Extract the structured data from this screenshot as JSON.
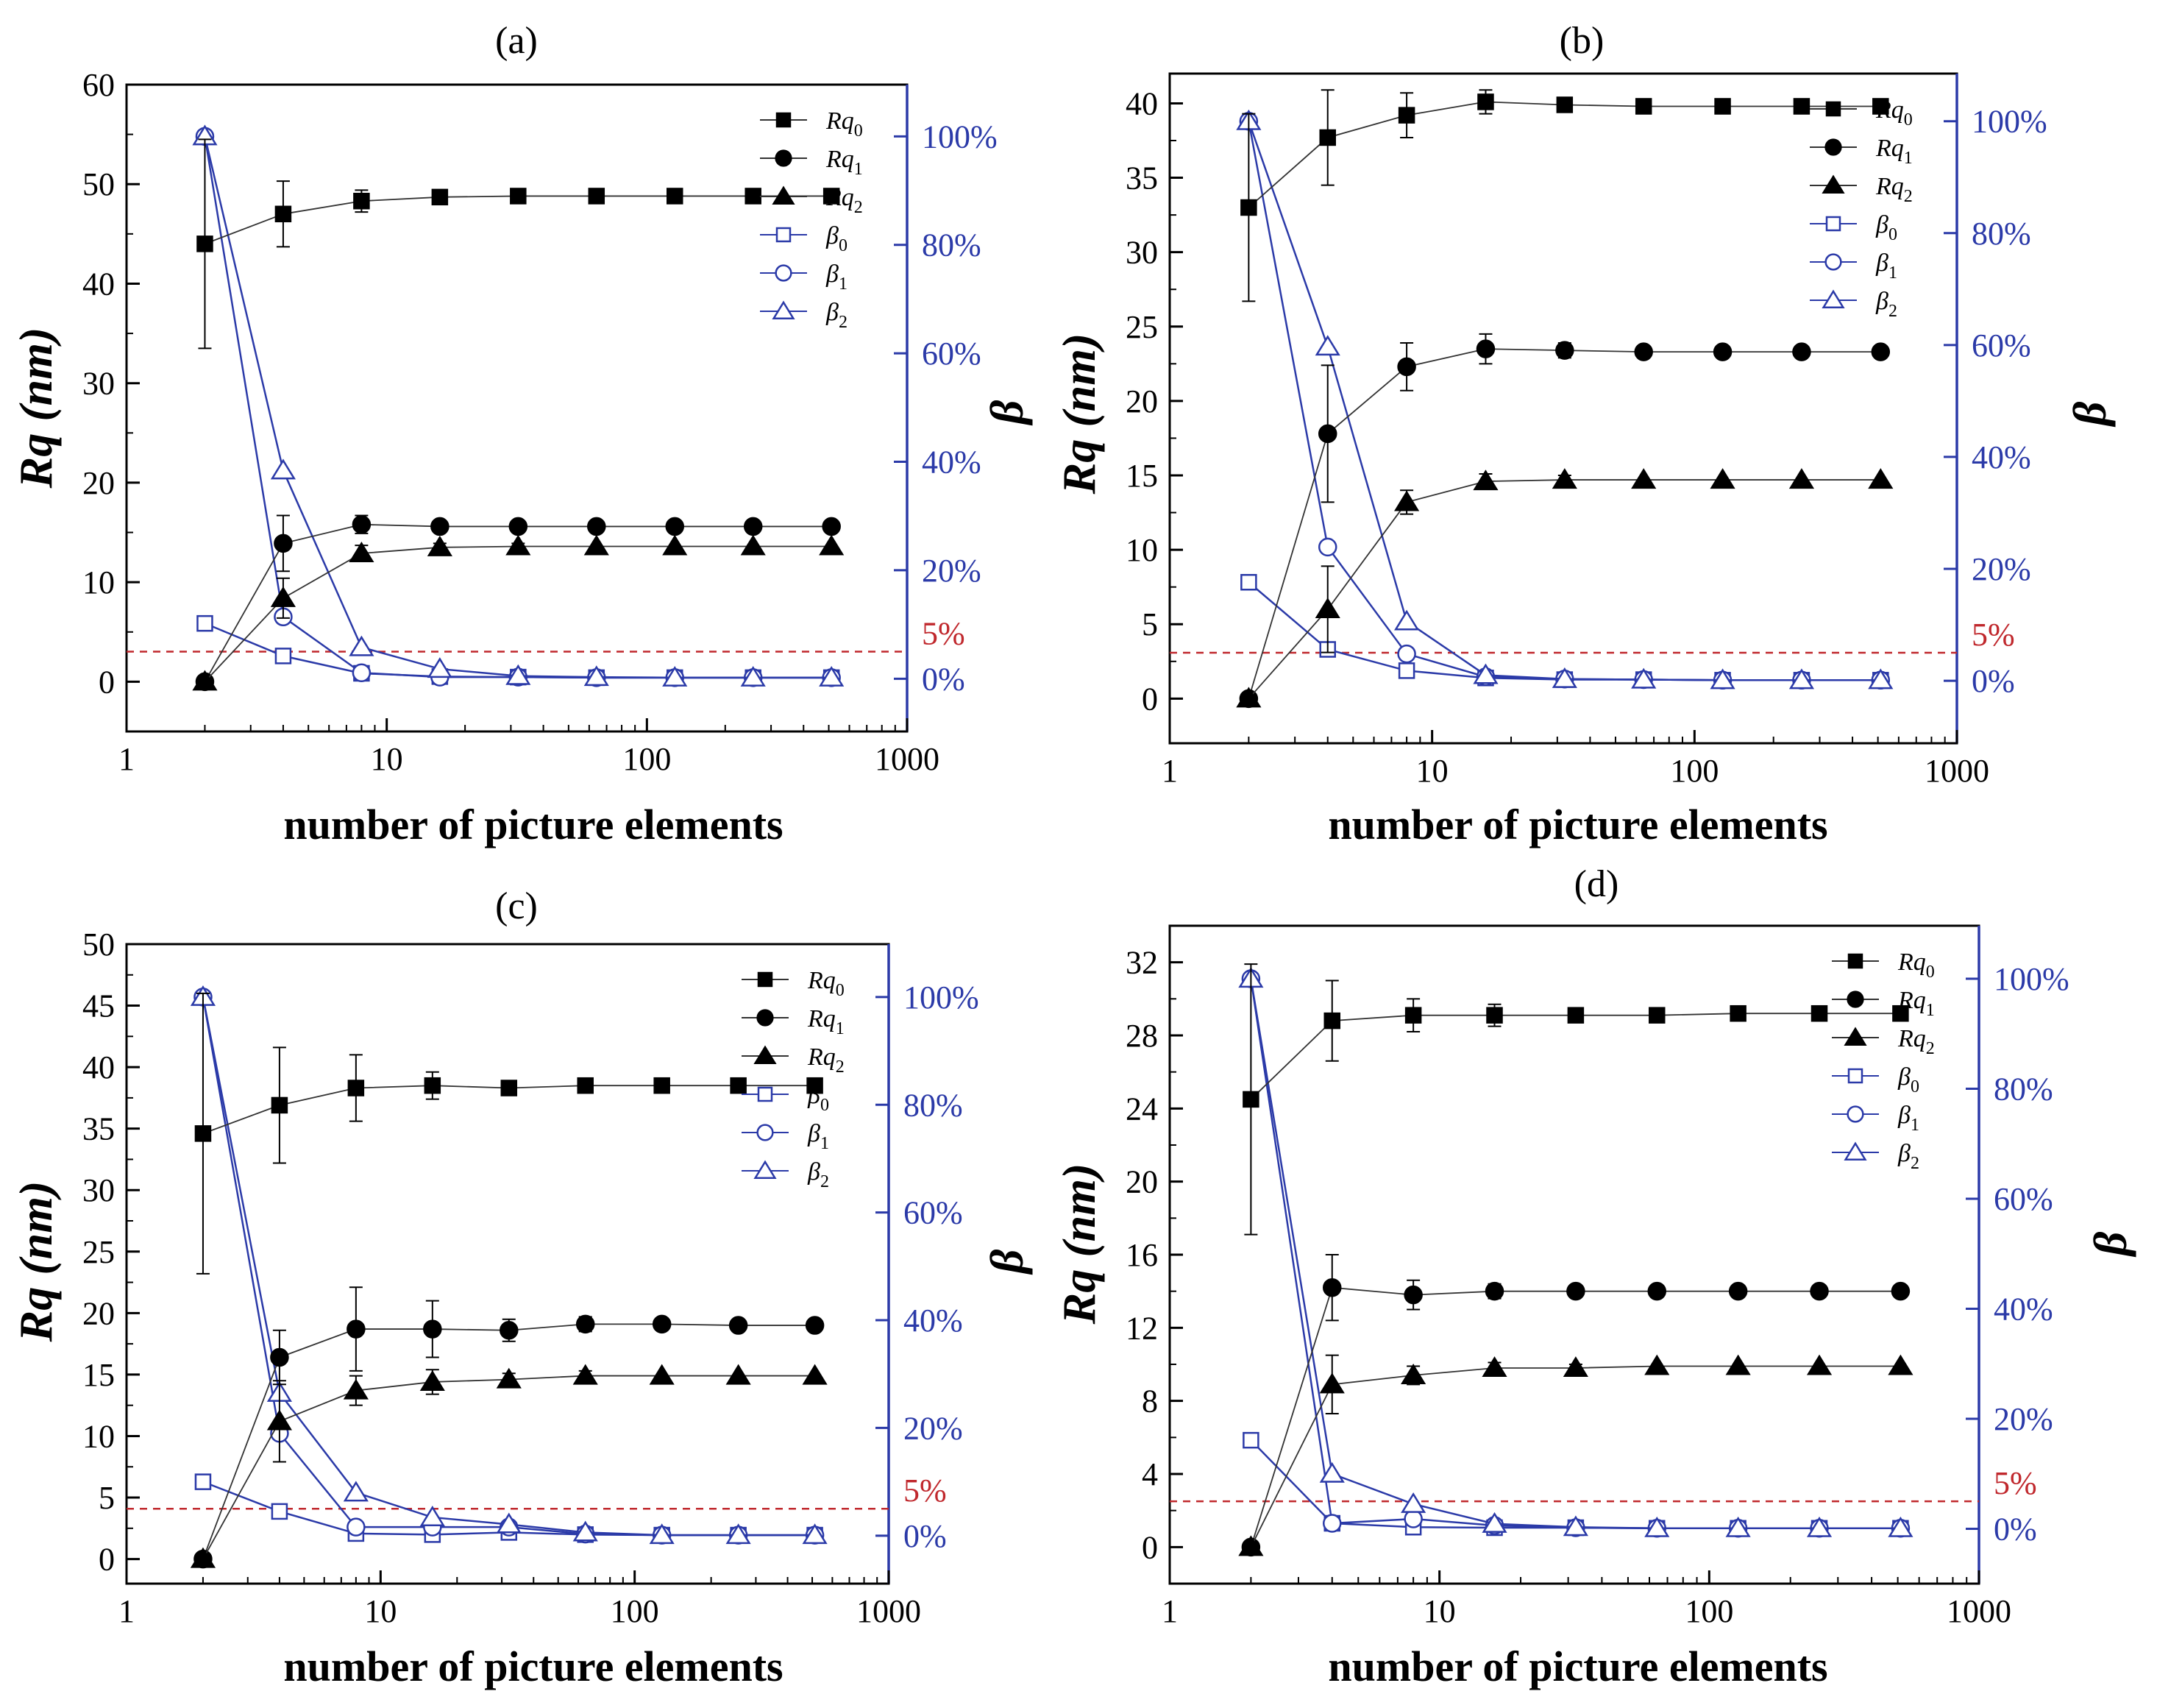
{
  "chart_data": [
    {
      "type": "line",
      "panel_label": "(a)",
      "xscale": "log",
      "xlim": [
        1,
        1000
      ],
      "xticks": [
        1,
        10,
        100,
        1000
      ],
      "xtick_labels": [
        "1",
        "10",
        "100",
        "1000"
      ],
      "xlabel": "number of picture elements",
      "ylabel": "Rq (nm)",
      "ylim": [
        -5,
        60
      ],
      "yticks": [
        0,
        10,
        20,
        30,
        40,
        50,
        60
      ],
      "ytick_labels": [
        "0",
        "10",
        "20",
        "30",
        "40",
        "50",
        "60"
      ],
      "y2label": "β",
      "y2_at_0pct": 0.3,
      "y2_at_100pct": 54.8,
      "y2ticks": [
        0,
        20,
        40,
        60,
        80,
        100
      ],
      "y2tick_labels": [
        "0%",
        "20%",
        "40%",
        "60%",
        "80%",
        "100%"
      ],
      "reference_line": {
        "value_pct": 5,
        "label": "5%",
        "color": "#c0282d"
      },
      "x": [
        2,
        4,
        8,
        16,
        32,
        64,
        128,
        256,
        512
      ],
      "series": [
        {
          "name": "Rq0",
          "base": "Rq",
          "sub": "0",
          "axis": "left",
          "marker": "square",
          "filled": true,
          "color": "#000000",
          "values": [
            44,
            47,
            48.3,
            48.7,
            48.8,
            48.8,
            48.8,
            48.8,
            48.8
          ],
          "errors": [
            10.5,
            3.3,
            1.1,
            0.5,
            0.3,
            0,
            0,
            0,
            0
          ]
        },
        {
          "name": "Rq1",
          "base": "Rq",
          "sub": "1",
          "axis": "left",
          "marker": "circle",
          "filled": true,
          "color": "#000000",
          "values": [
            0,
            13.9,
            15.8,
            15.6,
            15.6,
            15.6,
            15.6,
            15.6,
            15.6
          ],
          "errors": [
            0,
            2.8,
            0.9,
            0.4,
            0.3,
            0,
            0,
            0,
            0
          ]
        },
        {
          "name": "Rq2",
          "base": "Rq",
          "sub": "2",
          "axis": "left",
          "marker": "triangle",
          "filled": true,
          "color": "#000000",
          "values": [
            0,
            8.4,
            12.9,
            13.5,
            13.6,
            13.6,
            13.6,
            13.6,
            13.6
          ],
          "errors": [
            0,
            2.0,
            0.8,
            0.4,
            0.3,
            0,
            0,
            0,
            0
          ]
        },
        {
          "name": "β0",
          "base": "β",
          "sub": "0",
          "axis": "right",
          "marker": "square",
          "filled": false,
          "color": "#2b3aa8",
          "values": [
            10.2,
            4.2,
            1.0,
            0.4,
            0.3,
            0.2,
            0.2,
            0.2,
            0.2
          ]
        },
        {
          "name": "β1",
          "base": "β",
          "sub": "1",
          "axis": "right",
          "marker": "circle",
          "filled": false,
          "color": "#2b3aa8",
          "values": [
            100,
            11.4,
            1.1,
            0.3,
            0.3,
            0.2,
            0.2,
            0.2,
            0.2
          ]
        },
        {
          "name": "β2",
          "base": "β",
          "sub": "2",
          "axis": "right",
          "marker": "triangle",
          "filled": false,
          "color": "#2b3aa8",
          "values": [
            100,
            38.4,
            5.8,
            1.8,
            0.5,
            0.3,
            0.2,
            0.2,
            0.2
          ]
        }
      ]
    },
    {
      "type": "line",
      "panel_label": "(b)",
      "xscale": "log",
      "xlim": [
        1,
        1000
      ],
      "xticks": [
        1,
        10,
        100,
        1000
      ],
      "xtick_labels": [
        "1",
        "10",
        "100",
        "1000"
      ],
      "xlabel": "number of picture elements",
      "ylabel": "Rq (nm)",
      "ylim": [
        -3,
        42
      ],
      "yticks": [
        0,
        5,
        10,
        15,
        20,
        25,
        30,
        35,
        40
      ],
      "ytick_labels": [
        "0",
        "5",
        "10",
        "15",
        "20",
        "25",
        "30",
        "35",
        "40"
      ],
      "y2label": "β",
      "y2_at_0pct": 1.2,
      "y2_at_100pct": 38.8,
      "y2ticks": [
        0,
        20,
        40,
        60,
        80,
        100
      ],
      "y2tick_labels": [
        "0%",
        "20%",
        "40%",
        "60%",
        "80%",
        "100%"
      ],
      "reference_line": {
        "value_pct": 5,
        "label": "5%",
        "color": "#c0282d"
      },
      "x": [
        2,
        4,
        8,
        16,
        32,
        64,
        128,
        256,
        512
      ],
      "series": [
        {
          "name": "Rq0",
          "base": "Rq",
          "sub": "0",
          "axis": "left",
          "marker": "square",
          "filled": true,
          "color": "#000000",
          "values": [
            33,
            37.7,
            39.2,
            40.1,
            39.9,
            39.8,
            39.8,
            39.8,
            39.8
          ],
          "errors": [
            6.3,
            3.2,
            1.5,
            0.8,
            0.4,
            0,
            0,
            0,
            0
          ]
        },
        {
          "name": "Rq1",
          "base": "Rq",
          "sub": "1",
          "axis": "left",
          "marker": "circle",
          "filled": true,
          "color": "#000000",
          "values": [
            0,
            17.8,
            22.3,
            23.5,
            23.4,
            23.3,
            23.3,
            23.3,
            23.3
          ],
          "errors": [
            0,
            4.6,
            1.6,
            1.0,
            0.5,
            0,
            0,
            0,
            0
          ]
        },
        {
          "name": "Rq2",
          "base": "Rq",
          "sub": "2",
          "axis": "left",
          "marker": "triangle",
          "filled": true,
          "color": "#000000",
          "values": [
            0,
            6,
            13.2,
            14.6,
            14.7,
            14.7,
            14.7,
            14.7,
            14.7
          ],
          "errors": [
            0,
            2.9,
            0.8,
            0.5,
            0.3,
            0,
            0,
            0,
            0
          ]
        },
        {
          "name": "β0",
          "base": "β",
          "sub": "0",
          "axis": "right",
          "marker": "square",
          "filled": false,
          "color": "#2b3aa8",
          "values": [
            17.6,
            5.6,
            1.8,
            0.5,
            0.2,
            0.2,
            0.1,
            0.1,
            0.1
          ]
        },
        {
          "name": "β1",
          "base": "β",
          "sub": "1",
          "axis": "right",
          "marker": "circle",
          "filled": false,
          "color": "#2b3aa8",
          "values": [
            100,
            23.9,
            4.8,
            0.7,
            0.3,
            0.2,
            0.1,
            0.1,
            0.1
          ]
        },
        {
          "name": "β2",
          "base": "β",
          "sub": "2",
          "axis": "right",
          "marker": "triangle",
          "filled": false,
          "color": "#2b3aa8",
          "values": [
            100,
            59.7,
            10.6,
            1.0,
            0.3,
            0.2,
            0.1,
            0.1,
            0.1
          ]
        }
      ]
    },
    {
      "type": "line",
      "panel_label": "(c)",
      "xscale": "log",
      "xlim": [
        1,
        1000
      ],
      "xticks": [
        1,
        10,
        100,
        1000
      ],
      "xtick_labels": [
        "1",
        "10",
        "100",
        "1000"
      ],
      "xlabel": "number of picture elements",
      "ylabel": "Rq (nm)",
      "ylim": [
        -2,
        50
      ],
      "yticks": [
        0,
        5,
        10,
        15,
        20,
        25,
        30,
        35,
        40,
        45,
        50
      ],
      "ytick_labels": [
        "0",
        "5",
        "10",
        "15",
        "20",
        "25",
        "30",
        "35",
        "40",
        "45",
        "50"
      ],
      "y2label": "β",
      "y2_at_0pct": 1.9,
      "y2_at_100pct": 45.7,
      "y2ticks": [
        0,
        20,
        40,
        60,
        80,
        100
      ],
      "y2tick_labels": [
        "0%",
        "20%",
        "40%",
        "60%",
        "80%",
        "100%"
      ],
      "reference_line": {
        "value_pct": 5,
        "label": "5%",
        "color": "#c0282d"
      },
      "x": [
        2,
        4,
        8,
        16,
        32,
        64,
        128,
        256,
        512
      ],
      "series": [
        {
          "name": "Rq0",
          "base": "Rq",
          "sub": "0",
          "axis": "left",
          "marker": "square",
          "filled": true,
          "color": "#000000",
          "values": [
            34.6,
            36.9,
            38.3,
            38.5,
            38.3,
            38.5,
            38.5,
            38.5,
            38.5
          ],
          "errors": [
            11.4,
            4.7,
            2.7,
            1.1,
            0.6,
            0,
            0,
            0,
            0
          ]
        },
        {
          "name": "Rq1",
          "base": "Rq",
          "sub": "1",
          "axis": "left",
          "marker": "circle",
          "filled": true,
          "color": "#000000",
          "values": [
            0,
            16.4,
            18.7,
            18.7,
            18.6,
            19.1,
            19.1,
            19.0,
            19.0
          ],
          "errors": [
            0,
            2.2,
            3.4,
            2.3,
            0.9,
            0.6,
            0,
            0,
            0
          ]
        },
        {
          "name": "Rq2",
          "base": "Rq",
          "sub": "2",
          "axis": "left",
          "marker": "triangle",
          "filled": true,
          "color": "#000000",
          "values": [
            0,
            11.2,
            13.7,
            14.4,
            14.6,
            14.9,
            14.9,
            14.9,
            14.9
          ],
          "errors": [
            0,
            3.3,
            1.2,
            1.0,
            0.5,
            0.4,
            0,
            0,
            0
          ]
        },
        {
          "name": "β0",
          "base": "β",
          "sub": "0",
          "axis": "right",
          "marker": "square",
          "filled": false,
          "color": "#2b3aa8",
          "values": [
            10.0,
            4.5,
            0.4,
            0.2,
            0.6,
            0.2,
            0.1,
            0.1,
            0.1
          ]
        },
        {
          "name": "β1",
          "base": "β",
          "sub": "1",
          "axis": "right",
          "marker": "circle",
          "filled": false,
          "color": "#2b3aa8",
          "values": [
            100,
            19.0,
            1.6,
            1.6,
            1.6,
            0.3,
            0.1,
            0.1,
            0.1
          ]
        },
        {
          "name": "β2",
          "base": "β",
          "sub": "2",
          "axis": "right",
          "marker": "triangle",
          "filled": false,
          "color": "#2b3aa8",
          "values": [
            100,
            26.5,
            8.0,
            3.4,
            2.1,
            0.6,
            0.1,
            0.1,
            0.1
          ]
        }
      ]
    },
    {
      "type": "line",
      "panel_label": "(d)",
      "xscale": "log",
      "xlim": [
        1,
        1000
      ],
      "xticks": [
        1,
        10,
        100,
        1000
      ],
      "xtick_labels": [
        "1",
        "10",
        "100",
        "1000"
      ],
      "xlabel": "number of picture elements",
      "ylabel": "Rq (nm)",
      "ylim": [
        -2,
        34
      ],
      "yticks": [
        0,
        4,
        8,
        12,
        16,
        20,
        24,
        28,
        32
      ],
      "ytick_labels": [
        "0",
        "4",
        "8",
        "12",
        "16",
        "20",
        "24",
        "28",
        "32"
      ],
      "y2label": "β",
      "y2_at_0pct": 1.0,
      "y2_at_100pct": 31.1,
      "y2ticks": [
        0,
        20,
        40,
        60,
        80,
        100
      ],
      "y2tick_labels": [
        "0%",
        "20%",
        "40%",
        "60%",
        "80%",
        "100%"
      ],
      "reference_line": {
        "value_pct": 5,
        "label": "5%",
        "color": "#c0282d"
      },
      "x": [
        2,
        4,
        8,
        16,
        32,
        64,
        128,
        256,
        512
      ],
      "series": [
        {
          "name": "Rq0",
          "base": "Rq",
          "sub": "0",
          "axis": "left",
          "marker": "square",
          "filled": true,
          "color": "#000000",
          "values": [
            24.5,
            28.8,
            29.1,
            29.1,
            29.1,
            29.1,
            29.2,
            29.2,
            29.2
          ],
          "errors": [
            7.4,
            2.2,
            0.9,
            0.6,
            0.3,
            0,
            0,
            0,
            0
          ]
        },
        {
          "name": "Rq1",
          "base": "Rq",
          "sub": "1",
          "axis": "left",
          "marker": "circle",
          "filled": true,
          "color": "#000000",
          "values": [
            0,
            14.2,
            13.8,
            14.0,
            14.0,
            14.0,
            14.0,
            14.0,
            14.0
          ],
          "errors": [
            0,
            1.8,
            0.8,
            0.4,
            0.2,
            0,
            0,
            0,
            0
          ]
        },
        {
          "name": "Rq2",
          "base": "Rq",
          "sub": "2",
          "axis": "left",
          "marker": "triangle",
          "filled": true,
          "color": "#000000",
          "values": [
            0,
            8.9,
            9.4,
            9.8,
            9.8,
            9.9,
            9.9,
            9.9,
            9.9
          ],
          "errors": [
            0,
            1.6,
            0.5,
            0.3,
            0.2,
            0,
            0,
            0,
            0
          ]
        },
        {
          "name": "β0",
          "base": "β",
          "sub": "0",
          "axis": "right",
          "marker": "square",
          "filled": false,
          "color": "#2b3aa8",
          "values": [
            16.1,
            1.0,
            0.3,
            0.2,
            0.2,
            0.1,
            0.1,
            0.1,
            0.1
          ]
        },
        {
          "name": "β1",
          "base": "β",
          "sub": "1",
          "axis": "right",
          "marker": "circle",
          "filled": false,
          "color": "#2b3aa8",
          "values": [
            100,
            1.0,
            1.8,
            0.6,
            0.2,
            0.1,
            0.1,
            0.1,
            0.1
          ]
        },
        {
          "name": "β2",
          "base": "β",
          "sub": "2",
          "axis": "right",
          "marker": "triangle",
          "filled": false,
          "color": "#2b3aa8",
          "values": [
            100,
            10.0,
            4.5,
            0.9,
            0.3,
            0.1,
            0.1,
            0.1,
            0.1
          ]
        }
      ]
    }
  ]
}
